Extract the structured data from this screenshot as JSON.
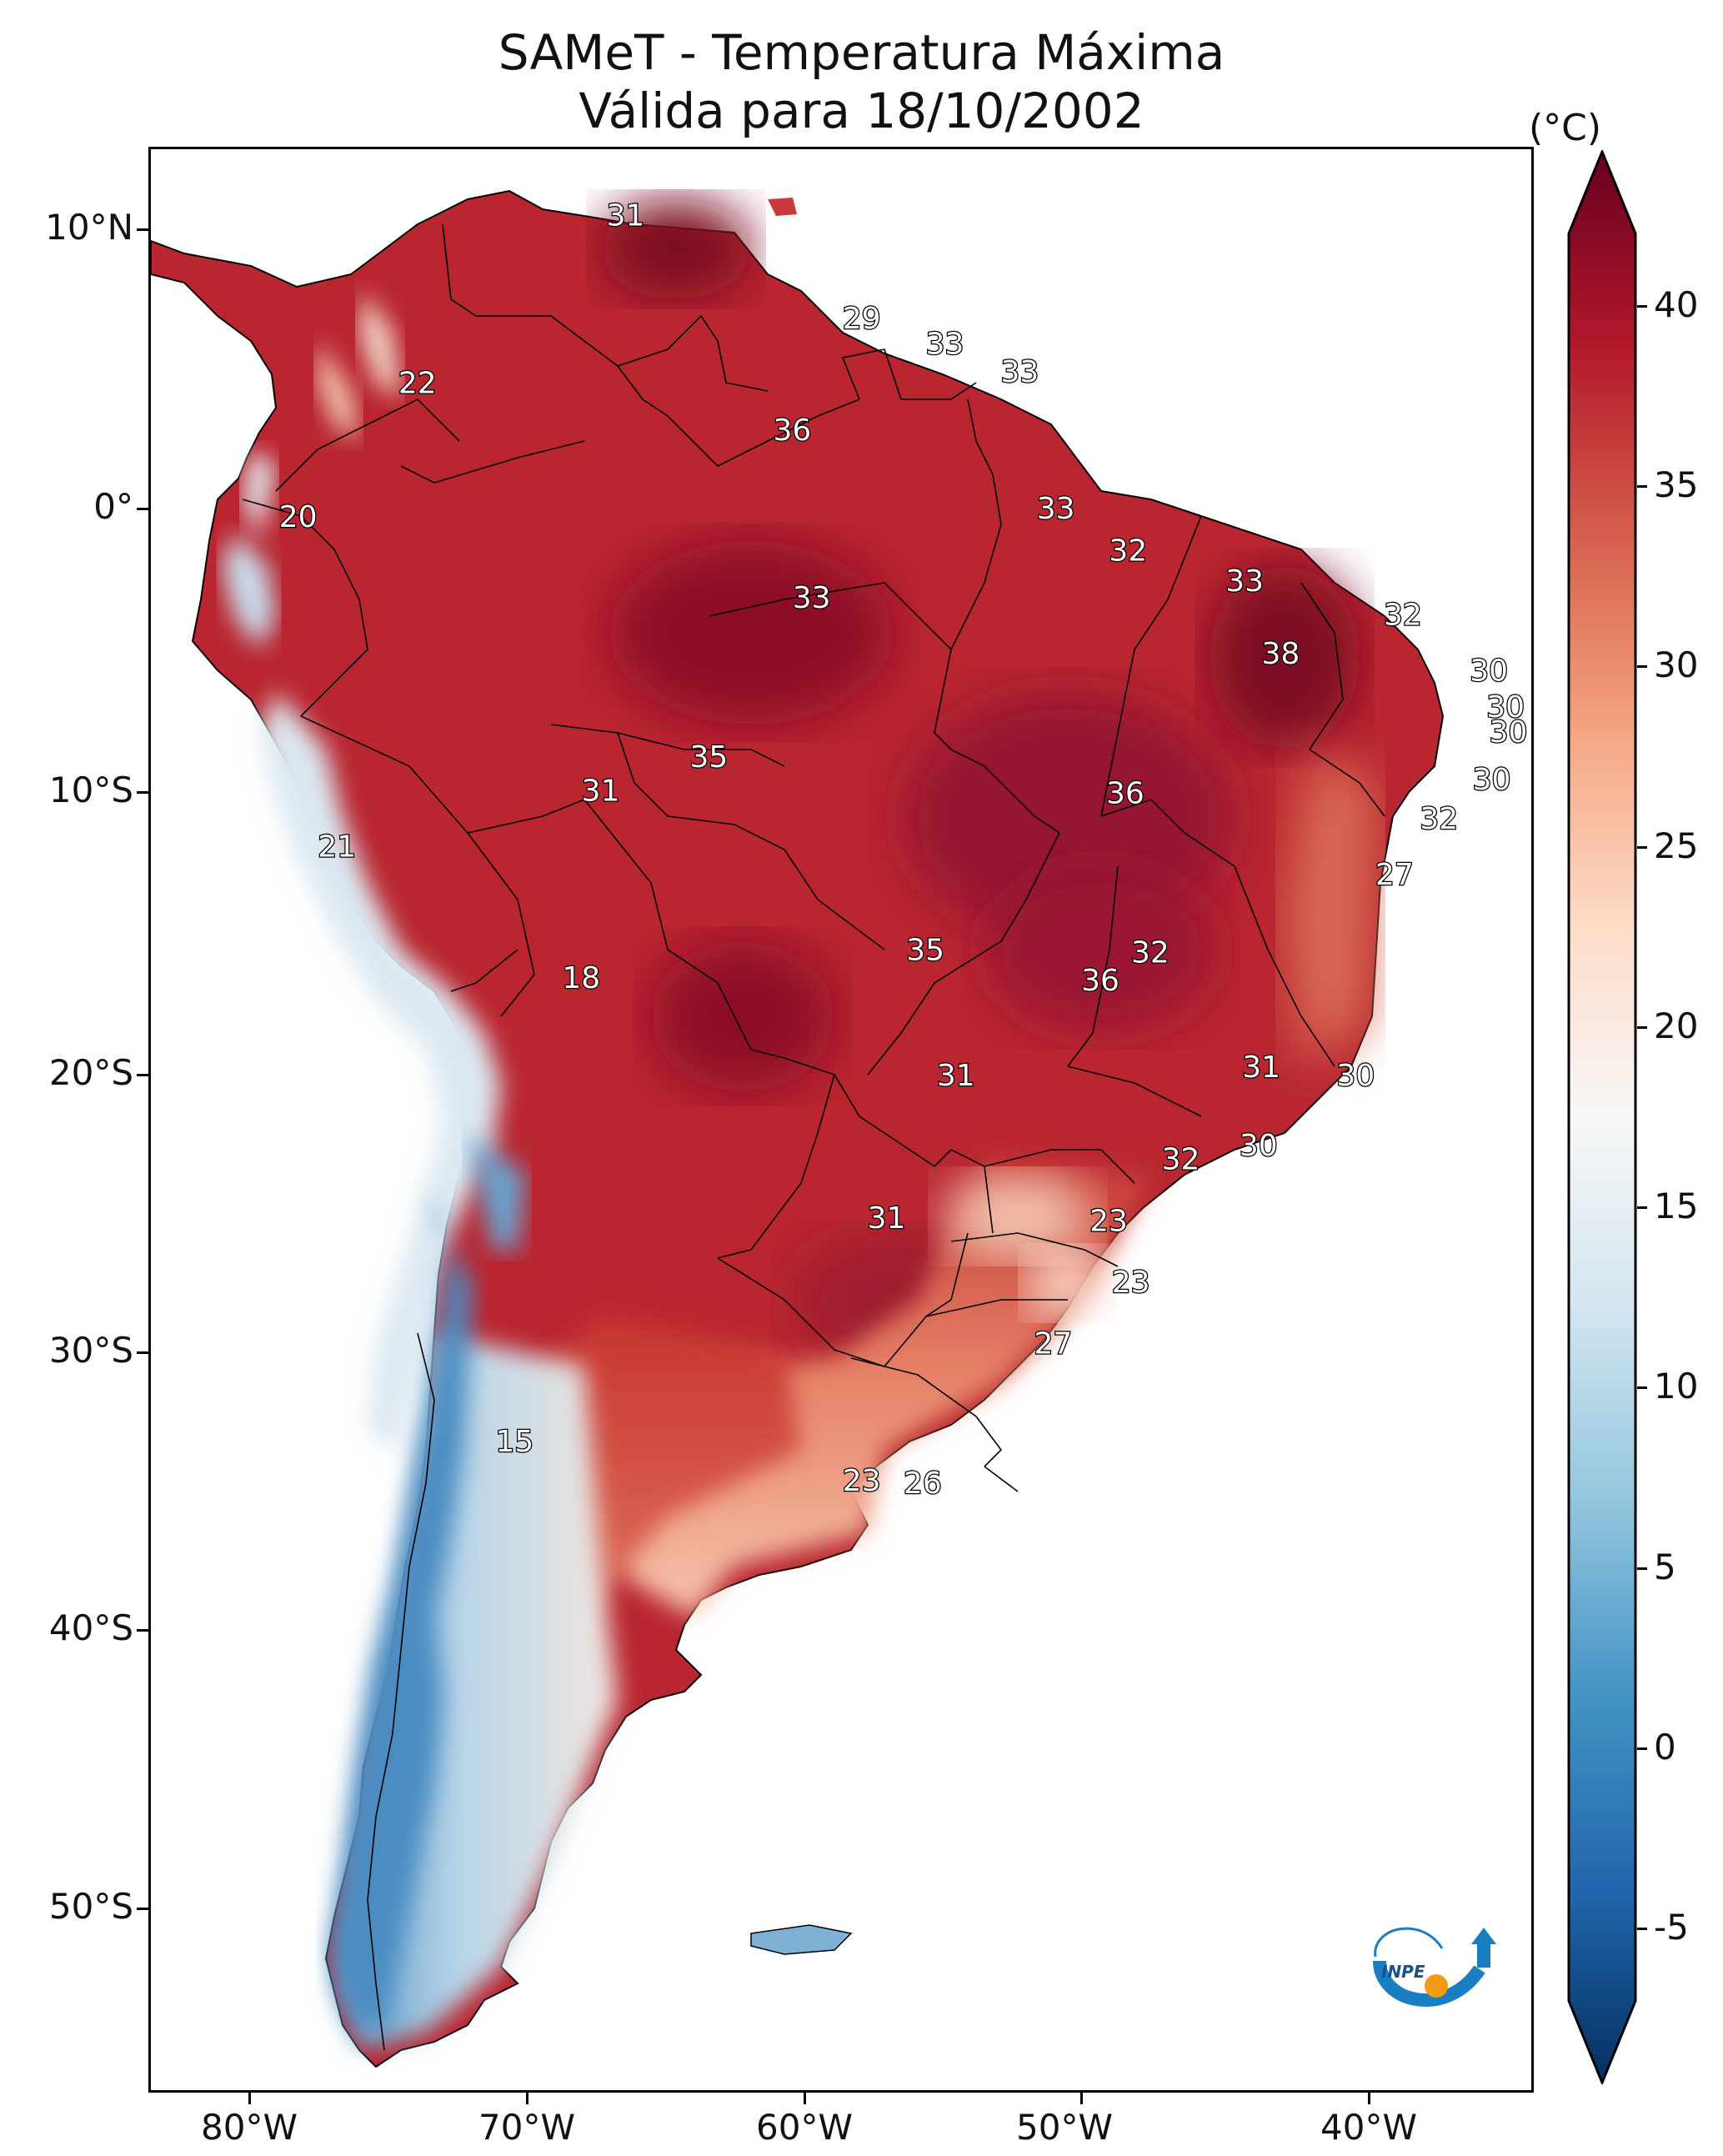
{
  "title": {
    "line1": "SAMeT - Temperatura Máxima",
    "line2": "Válida para 18/10/2002"
  },
  "axes": {
    "lat_labels": [
      "10°N",
      "0°",
      "10°S",
      "20°S",
      "30°S",
      "40°S",
      "50°S"
    ],
    "lon_labels": [
      "80°W",
      "70°W",
      "60°W",
      "50°W",
      "40°W"
    ]
  },
  "colorbar": {
    "unit": "(°C)",
    "ticks": [
      "40",
      "35",
      "30",
      "25",
      "20",
      "15",
      "10",
      "5",
      "0",
      "-5"
    ],
    "min": -7,
    "max": 42,
    "colors": [
      "#053061",
      "#2166ac",
      "#4393c3",
      "#92c5de",
      "#d1e5f0",
      "#f7f7f7",
      "#fddbc7",
      "#f4a582",
      "#d6604d",
      "#b2182b",
      "#67001f"
    ]
  },
  "contour_labels": [
    {
      "text": "31",
      "lat": 10.5,
      "lon": -66.5
    },
    {
      "text": "29",
      "lat": 6.8,
      "lon": -58.0
    },
    {
      "text": "33",
      "lat": 5.9,
      "lon": -55.0
    },
    {
      "text": "33",
      "lat": 4.9,
      "lon": -52.3
    },
    {
      "text": "22",
      "lat": 4.5,
      "lon": -74.0
    },
    {
      "text": "36",
      "lat": 2.8,
      "lon": -60.5
    },
    {
      "text": "20",
      "lat": -0.3,
      "lon": -78.3
    },
    {
      "text": "33",
      "lat": 0.0,
      "lon": -51.0
    },
    {
      "text": "32",
      "lat": -1.5,
      "lon": -48.4
    },
    {
      "text": "33",
      "lat": -2.6,
      "lon": -44.2
    },
    {
      "text": "33",
      "lat": -3.2,
      "lon": -59.8
    },
    {
      "text": "32",
      "lat": -3.8,
      "lon": -38.5
    },
    {
      "text": "38",
      "lat": -5.2,
      "lon": -42.9
    },
    {
      "text": "30",
      "lat": -5.8,
      "lon": -35.4
    },
    {
      "text": "30",
      "lat": -7.1,
      "lon": -34.8
    },
    {
      "text": "30",
      "lat": -8.0,
      "lon": -34.7
    },
    {
      "text": "35",
      "lat": -8.9,
      "lon": -63.5
    },
    {
      "text": "31",
      "lat": -10.1,
      "lon": -67.4
    },
    {
      "text": "36",
      "lat": -10.2,
      "lon": -48.5
    },
    {
      "text": "30",
      "lat": -9.7,
      "lon": -35.3
    },
    {
      "text": "32",
      "lat": -11.1,
      "lon": -37.2
    },
    {
      "text": "21",
      "lat": -12.1,
      "lon": -76.9
    },
    {
      "text": "27",
      "lat": -13.1,
      "lon": -38.8
    },
    {
      "text": "35",
      "lat": -15.8,
      "lon": -55.7
    },
    {
      "text": "32",
      "lat": -15.9,
      "lon": -47.6
    },
    {
      "text": "36",
      "lat": -16.9,
      "lon": -49.4
    },
    {
      "text": "18",
      "lat": -16.8,
      "lon": -68.1
    },
    {
      "text": "31",
      "lat": -20.0,
      "lon": -43.6
    },
    {
      "text": "31",
      "lat": -20.3,
      "lon": -54.6
    },
    {
      "text": "30",
      "lat": -20.3,
      "lon": -40.2
    },
    {
      "text": "30",
      "lat": -22.8,
      "lon": -43.7
    },
    {
      "text": "32",
      "lat": -23.3,
      "lon": -46.5
    },
    {
      "text": "31",
      "lat": -25.4,
      "lon": -57.1
    },
    {
      "text": "23",
      "lat": -25.5,
      "lon": -49.1
    },
    {
      "text": "23",
      "lat": -27.7,
      "lon": -48.3
    },
    {
      "text": "27",
      "lat": -29.9,
      "lon": -51.1
    },
    {
      "text": "15",
      "lat": -33.4,
      "lon": -70.5
    },
    {
      "text": "23",
      "lat": -34.8,
      "lon": -58.0
    },
    {
      "text": "26",
      "lat": -34.9,
      "lon": -55.8
    }
  ],
  "logo": {
    "text": "INPE"
  }
}
